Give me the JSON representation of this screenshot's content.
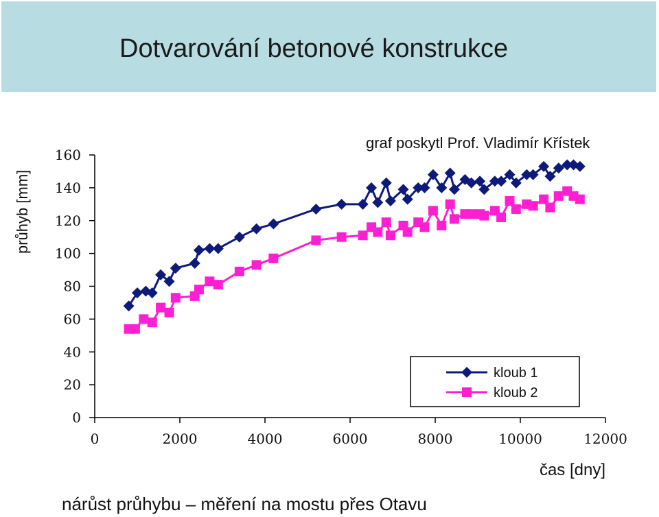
{
  "header": {
    "title": "Dotvarování betonové konstrukce"
  },
  "credit": "graf poskytl Prof. Vladimír Křístek",
  "caption": "nárůst průhybu – měření na mostu přes Otavu",
  "chart_data": {
    "type": "line",
    "title": "",
    "xlabel": "čas [dny]",
    "ylabel": "průhyb [mm]",
    "xlim": [
      0,
      12000
    ],
    "ylim": [
      0,
      160
    ],
    "xticks": [
      0,
      2000,
      4000,
      6000,
      8000,
      10000,
      12000
    ],
    "yticks": [
      0,
      20,
      40,
      60,
      80,
      100,
      120,
      140,
      160
    ],
    "legend": "bottom-right",
    "series": [
      {
        "name": "kloub 1",
        "color": "#0d1a7a",
        "marker": "diamond",
        "x": [
          800,
          1000,
          1200,
          1350,
          1550,
          1750,
          1900,
          2350,
          2450,
          2700,
          2900,
          3400,
          3800,
          4200,
          5200,
          5800,
          6300,
          6500,
          6650,
          6850,
          6950,
          7250,
          7350,
          7600,
          7750,
          7950,
          8150,
          8350,
          8450,
          8700,
          8850,
          9050,
          9150,
          9400,
          9550,
          9750,
          9900,
          10150,
          10300,
          10550,
          10700,
          10900,
          11100,
          11250,
          11400
        ],
        "y": [
          68,
          76,
          77,
          76,
          87,
          83,
          91,
          94,
          102,
          103,
          103,
          110,
          115,
          118,
          127,
          130,
          130,
          140,
          131,
          143,
          132,
          139,
          133,
          140,
          140,
          148,
          140,
          149,
          139,
          145,
          143,
          144,
          139,
          144,
          144,
          148,
          143,
          148,
          148,
          153,
          147,
          152,
          154,
          154,
          153
        ]
      },
      {
        "name": "kloub 2",
        "color": "#ff1fd2",
        "marker": "square",
        "x": [
          800,
          950,
          1150,
          1350,
          1550,
          1750,
          1900,
          2350,
          2450,
          2700,
          2900,
          3400,
          3800,
          4200,
          5200,
          5800,
          6300,
          6500,
          6650,
          6850,
          6950,
          7250,
          7350,
          7600,
          7750,
          7950,
          8150,
          8350,
          8450,
          8700,
          8850,
          9050,
          9150,
          9400,
          9550,
          9750,
          9900,
          10150,
          10300,
          10550,
          10700,
          10900,
          11100,
          11250,
          11400
        ],
        "y": [
          54,
          54,
          60,
          58,
          67,
          64,
          73,
          74,
          78,
          83,
          81,
          89,
          93,
          97,
          108,
          110,
          111,
          116,
          113,
          119,
          111,
          117,
          113,
          119,
          116,
          126,
          117,
          130,
          121,
          124,
          124,
          124,
          123,
          126,
          122,
          132,
          127,
          130,
          129,
          133,
          128,
          135,
          138,
          135,
          133
        ]
      }
    ]
  }
}
